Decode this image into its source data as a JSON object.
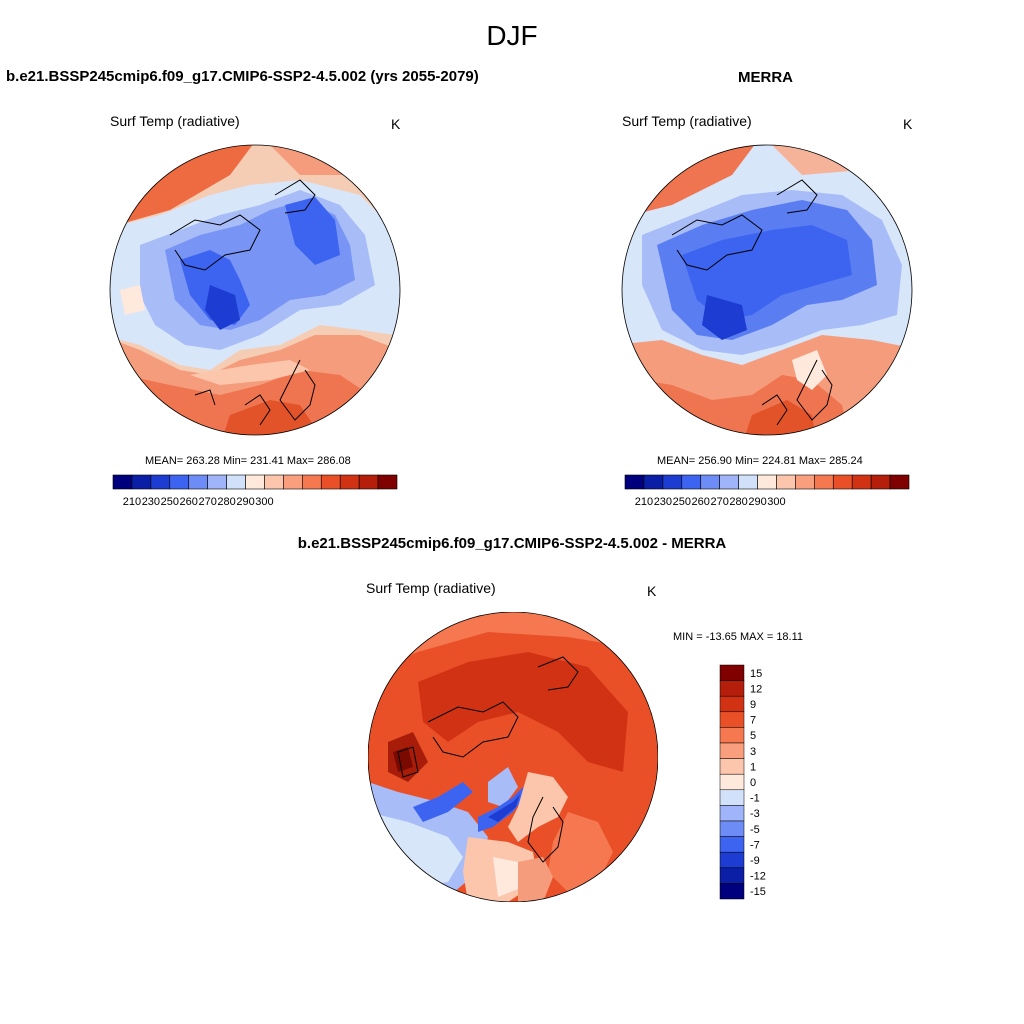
{
  "page": {
    "season": "DJF"
  },
  "panels": [
    {
      "title": "b.e21.BSSP245cmip6.f09_g17.CMIP6-SSP2-4.5.002 (yrs 2055-2079)",
      "variable": "Surf Temp (radiative)",
      "units": "K",
      "stats": "MEAN= 263.28  Min= 231.41  Max= 286.08",
      "mean": 263.28,
      "min": 231.41,
      "max": 286.08
    },
    {
      "title": "MERRA",
      "variable": "Surf Temp (radiative)",
      "units": "K",
      "stats": "MEAN= 256.90  Min= 224.81  Max= 285.24",
      "mean": 256.9,
      "min": 224.81,
      "max": 285.24
    },
    {
      "title": "b.e21.BSSP245cmip6.f09_g17.CMIP6-SSP2-4.5.002 - MERRA",
      "variable": "Surf Temp (radiative)",
      "units": "K",
      "minmax": "MIN = -13.65 MAX =  18.11",
      "min": -13.65,
      "max": 18.11
    }
  ],
  "colorbars": {
    "absolute": {
      "orientation": "horizontal",
      "tick_labels": [
        "210",
        "230",
        "250",
        "260",
        "270",
        "280",
        "290",
        "300"
      ],
      "colors": [
        "#00007f",
        "#0a1ea6",
        "#1c3cd2",
        "#3c64f0",
        "#6e8cf5",
        "#a0b4fa",
        "#d2e1fa",
        "#ffe8dc",
        "#fcc6ad",
        "#fa9f7d",
        "#f57850",
        "#ea5028",
        "#d23214",
        "#b41e0a",
        "#800000"
      ]
    },
    "difference": {
      "orientation": "vertical",
      "tick_labels": [
        "15",
        "12",
        "9",
        "7",
        "5",
        "3",
        "1",
        "0",
        "-1",
        "-3",
        "-5",
        "-7",
        "-9",
        "-12",
        "-15"
      ],
      "colors": [
        "#800000",
        "#b41e0a",
        "#d23214",
        "#ea5028",
        "#f57850",
        "#fa9f7d",
        "#fcc6ad",
        "#ffe8dc",
        "#d2e1fa",
        "#a0b4fa",
        "#6e8cf5",
        "#3c64f0",
        "#1c3cd2",
        "#0a1ea6",
        "#00007f"
      ]
    }
  },
  "map": {
    "projection": "north polar stereographic"
  }
}
